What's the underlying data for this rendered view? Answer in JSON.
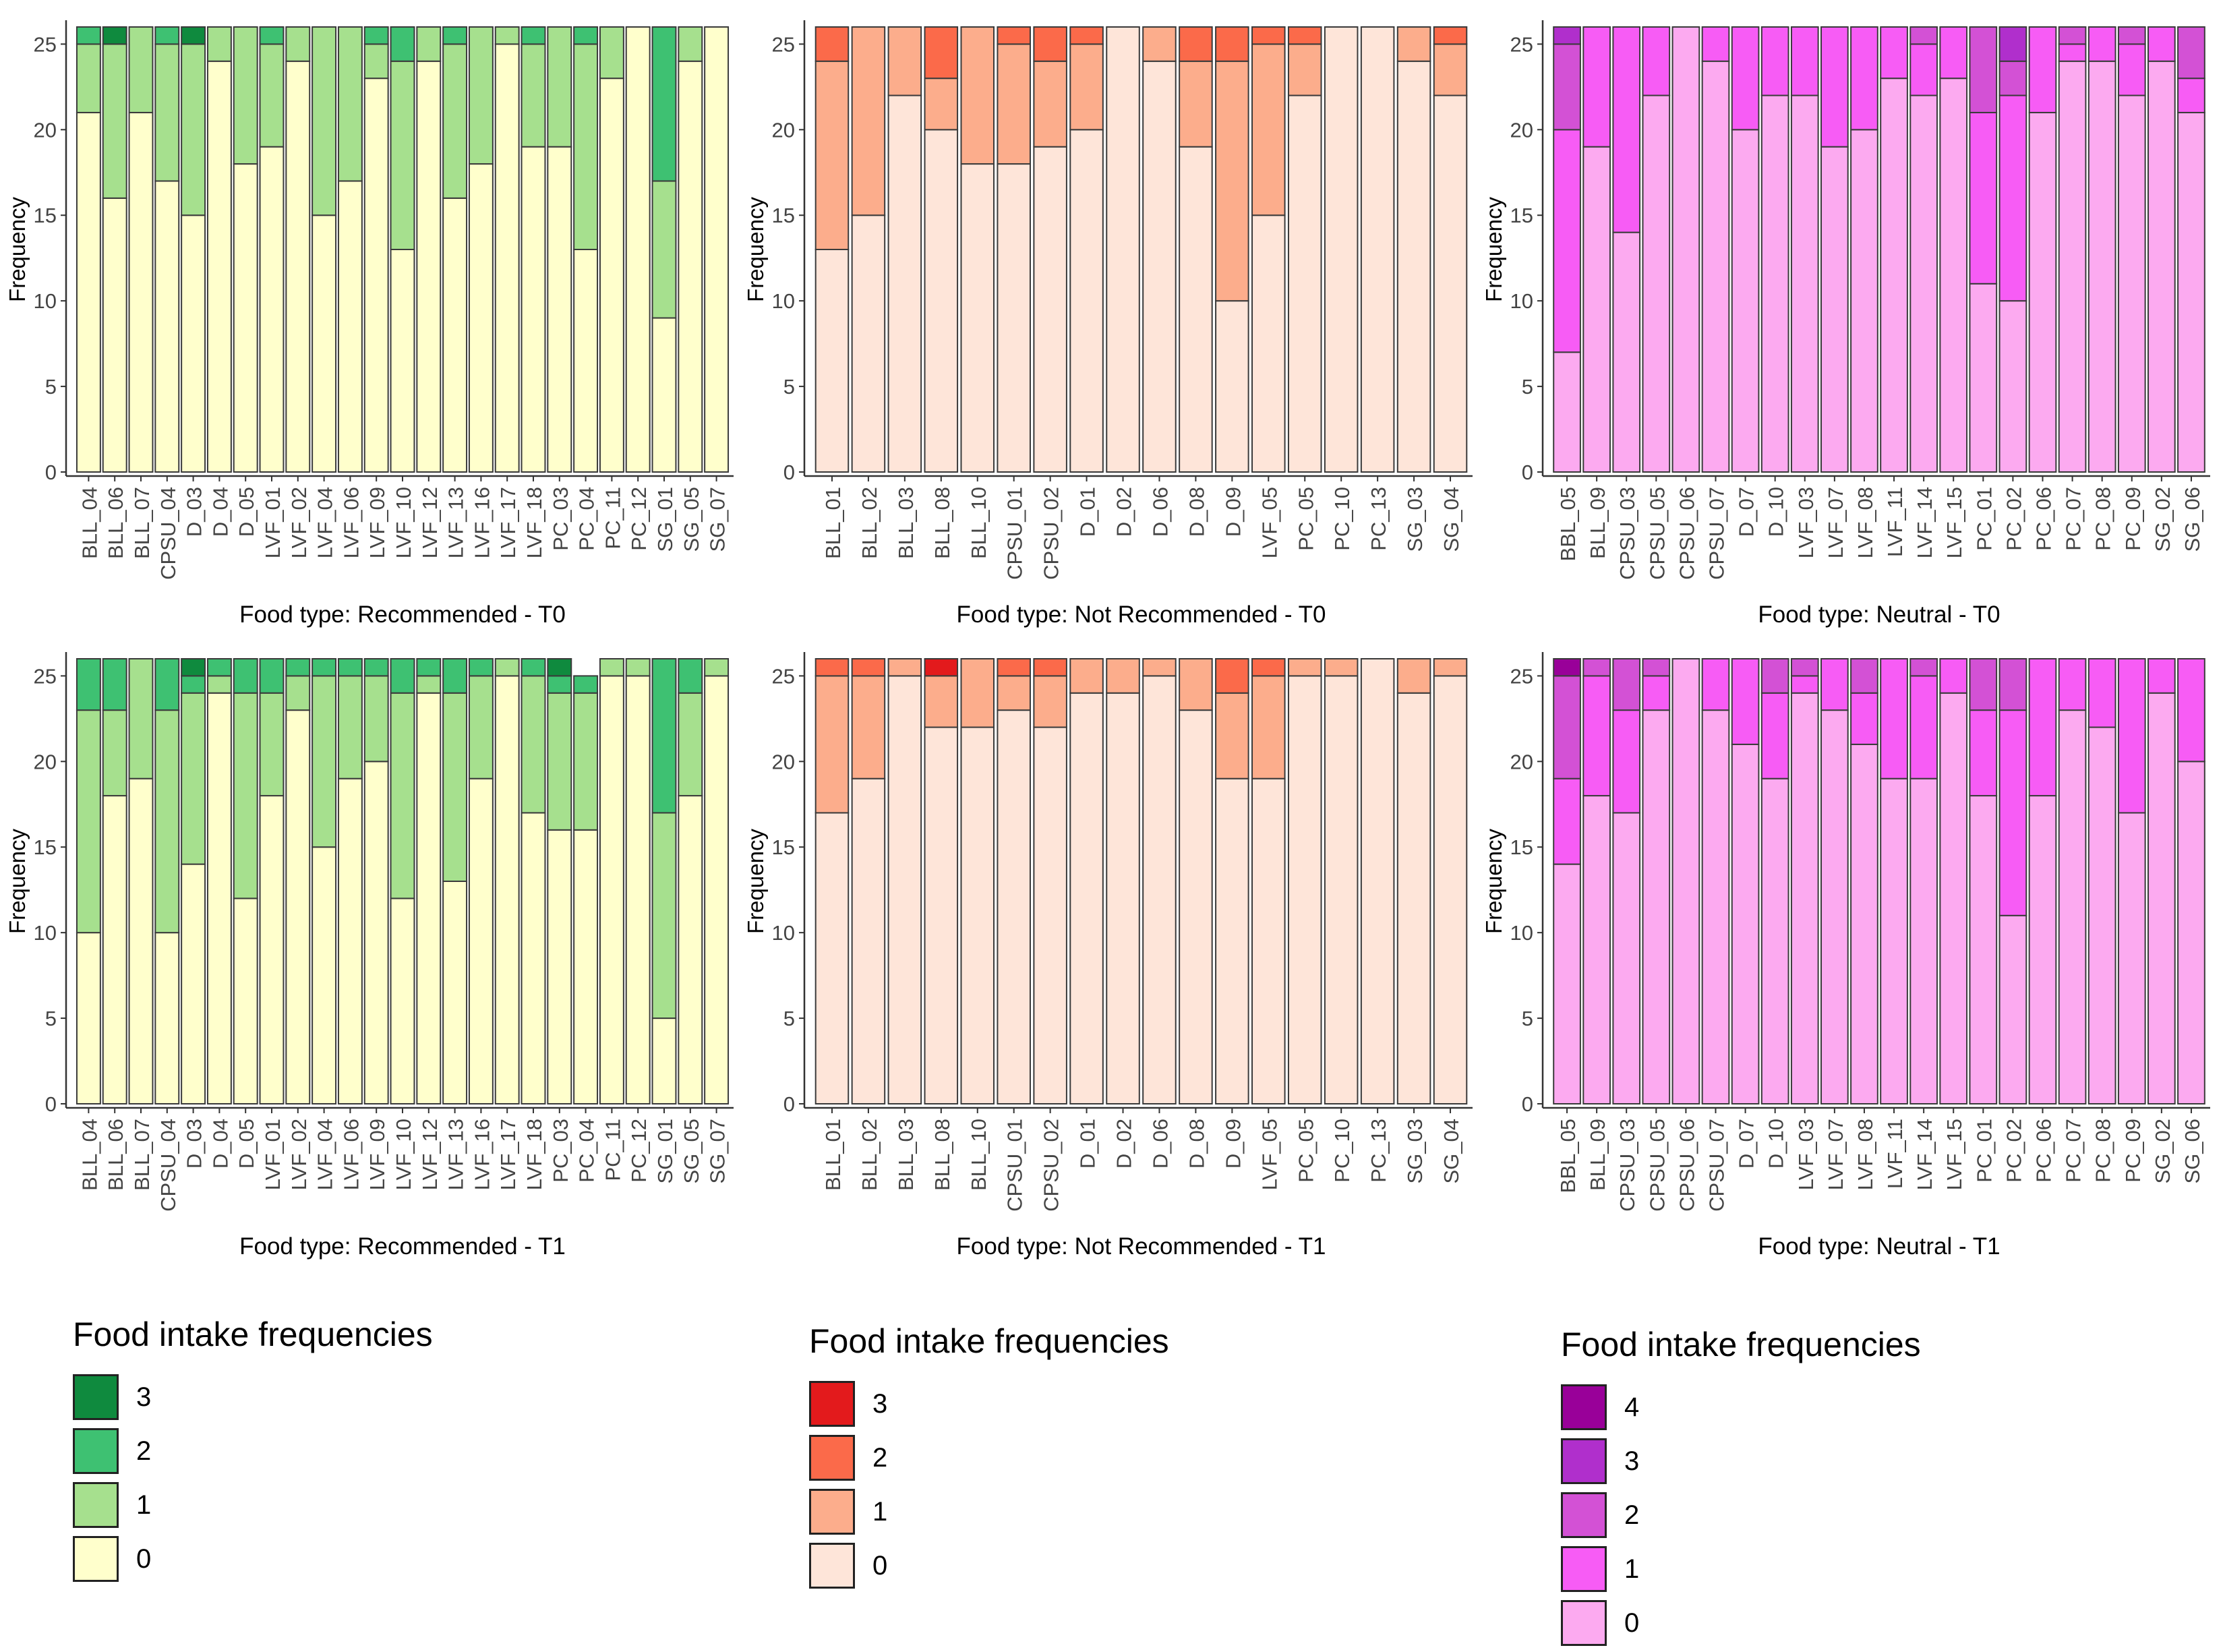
{
  "chart_data": [
    {
      "type": "stacked_bar",
      "panel": "recommended_t0",
      "title": "",
      "xlabel": "Food type: Recommended - T0",
      "ylabel": "Frequency",
      "ylim": [
        0,
        26
      ],
      "yticks": [
        0,
        5,
        10,
        15,
        20,
        25
      ],
      "grid": false,
      "categories": [
        "BLL_04",
        "BLL_06",
        "BLL_07",
        "CPSU_04",
        "D_03",
        "D_04",
        "D_05",
        "LVF_01",
        "LVF_02",
        "LVF_04",
        "LVF_06",
        "LVF_09",
        "LVF_10",
        "LVF_12",
        "LVF_13",
        "LVF_16",
        "LVF_17",
        "LVF_18",
        "PC_03",
        "PC_04",
        "PC_11",
        "PC_12",
        "SG_01",
        "SG_05",
        "SG_07"
      ],
      "series": [
        {
          "name": "0",
          "color": "#ffffcc",
          "values": [
            21,
            16,
            21,
            17,
            15,
            24,
            18,
            19,
            24,
            15,
            17,
            23,
            13,
            24,
            16,
            18,
            25,
            19,
            19,
            13,
            23,
            26,
            9,
            24,
            26
          ]
        },
        {
          "name": "1",
          "color": "#a6e08e",
          "values": [
            4,
            9,
            5,
            8,
            10,
            2,
            8,
            6,
            2,
            11,
            9,
            2,
            11,
            2,
            9,
            8,
            1,
            6,
            7,
            12,
            3,
            0,
            8,
            2,
            0
          ]
        },
        {
          "name": "2",
          "color": "#3ec172",
          "values": [
            1,
            0,
            0,
            1,
            0,
            0,
            0,
            1,
            0,
            0,
            0,
            1,
            2,
            0,
            1,
            0,
            0,
            1,
            0,
            1,
            0,
            0,
            9,
            0,
            0
          ]
        },
        {
          "name": "3",
          "color": "#0f8a3e",
          "values": [
            0,
            1,
            0,
            0,
            1,
            0,
            0,
            0,
            0,
            0,
            0,
            0,
            0,
            0,
            0,
            0,
            0,
            0,
            0,
            0,
            0,
            0,
            0,
            0,
            0
          ]
        }
      ]
    },
    {
      "type": "stacked_bar",
      "panel": "not_recommended_t0",
      "title": "",
      "xlabel": "Food type: Not Recommended - T0",
      "ylabel": "Frequency",
      "ylim": [
        0,
        26
      ],
      "yticks": [
        0,
        5,
        10,
        15,
        20,
        25
      ],
      "grid": false,
      "categories": [
        "BLL_01",
        "BLL_02",
        "BLL_03",
        "BLL_08",
        "BLL_10",
        "CPSU_01",
        "CPSU_02",
        "D_01",
        "D_02",
        "D_06",
        "D_08",
        "D_09",
        "LVF_05",
        "PC_05",
        "PC_10",
        "PC_13",
        "SG_03",
        "SG_04"
      ],
      "series": [
        {
          "name": "0",
          "color": "#fee5d9",
          "values": [
            13,
            15,
            22,
            20,
            18,
            18,
            19,
            20,
            26,
            24,
            19,
            10,
            15,
            22,
            26,
            26,
            24,
            22
          ]
        },
        {
          "name": "1",
          "color": "#fcad8c",
          "values": [
            11,
            11,
            4,
            3,
            8,
            7,
            5,
            5,
            0,
            2,
            5,
            14,
            10,
            3,
            0,
            0,
            2,
            3
          ]
        },
        {
          "name": "2",
          "color": "#fb6a4a",
          "values": [
            2,
            0,
            0,
            3,
            0,
            1,
            2,
            1,
            0,
            0,
            2,
            2,
            1,
            1,
            0,
            0,
            0,
            1
          ]
        },
        {
          "name": "3",
          "color": "#e31a1c",
          "values": [
            0,
            0,
            0,
            0,
            0,
            0,
            0,
            0,
            0,
            0,
            0,
            0,
            0,
            0,
            0,
            0,
            0,
            0
          ]
        }
      ]
    },
    {
      "type": "stacked_bar",
      "panel": "neutral_t0",
      "title": "",
      "xlabel": "Food type: Neutral - T0",
      "ylabel": "Frequency",
      "ylim": [
        0,
        26
      ],
      "yticks": [
        0,
        5,
        10,
        15,
        20,
        25
      ],
      "grid": false,
      "categories": [
        "BBL_05",
        "BLL_09",
        "CPSU_03",
        "CPSU_05",
        "CPSU_06",
        "CPSU_07",
        "D_07",
        "D_10",
        "LVF_03",
        "LVF_07",
        "LVF_08",
        "LVF_11",
        "LVF_14",
        "LVF_15",
        "PC_01",
        "PC_02",
        "PC_06",
        "PC_07",
        "PC_08",
        "PC_09",
        "SG_02",
        "SG_06"
      ],
      "series": [
        {
          "name": "0",
          "color": "#fcaaf0",
          "values": [
            7,
            19,
            14,
            22,
            26,
            24,
            20,
            22,
            22,
            19,
            20,
            23,
            22,
            23,
            11,
            10,
            21,
            24,
            24,
            22,
            24,
            21
          ]
        },
        {
          "name": "1",
          "color": "#f75cf5",
          "values": [
            13,
            7,
            12,
            4,
            0,
            2,
            6,
            4,
            4,
            7,
            6,
            3,
            3,
            3,
            10,
            12,
            5,
            1,
            2,
            3,
            2,
            2
          ]
        },
        {
          "name": "2",
          "color": "#d351d5",
          "values": [
            5,
            0,
            0,
            0,
            0,
            0,
            0,
            0,
            0,
            0,
            0,
            0,
            1,
            0,
            5,
            2,
            0,
            1,
            0,
            1,
            0,
            3
          ]
        },
        {
          "name": "3",
          "color": "#b02fcc",
          "values": [
            1,
            0,
            0,
            0,
            0,
            0,
            0,
            0,
            0,
            0,
            0,
            0,
            0,
            0,
            0,
            2,
            0,
            0,
            0,
            0,
            0,
            0
          ]
        },
        {
          "name": "4",
          "color": "#990099",
          "values": [
            0,
            0,
            0,
            0,
            0,
            0,
            0,
            0,
            0,
            0,
            0,
            0,
            0,
            0,
            0,
            0,
            0,
            0,
            0,
            0,
            0,
            0
          ]
        }
      ]
    },
    {
      "type": "stacked_bar",
      "panel": "recommended_t1",
      "title": "",
      "xlabel": "Food type: Recommended - T1",
      "ylabel": "Frequency",
      "ylim": [
        0,
        26
      ],
      "yticks": [
        0,
        5,
        10,
        15,
        20,
        25
      ],
      "grid": false,
      "categories": [
        "BLL_04",
        "BLL_06",
        "BLL_07",
        "CPSU_04",
        "D_03",
        "D_04",
        "D_05",
        "LVF_01",
        "LVF_02",
        "LVF_04",
        "LVF_06",
        "LVF_09",
        "LVF_10",
        "LVF_12",
        "LVF_13",
        "LVF_16",
        "LVF_17",
        "LVF_18",
        "PC_03",
        "PC_04",
        "PC_11",
        "PC_12",
        "SG_01",
        "SG_05",
        "SG_07"
      ],
      "series": [
        {
          "name": "0",
          "color": "#ffffcc",
          "values": [
            10,
            18,
            19,
            10,
            14,
            24,
            12,
            18,
            23,
            15,
            19,
            20,
            12,
            24,
            13,
            19,
            25,
            17,
            16,
            16,
            25,
            25,
            5,
            18,
            25
          ]
        },
        {
          "name": "1",
          "color": "#a6e08e",
          "values": [
            13,
            5,
            7,
            13,
            10,
            1,
            12,
            6,
            2,
            10,
            6,
            5,
            12,
            1,
            11,
            6,
            1,
            8,
            8,
            8,
            1,
            1,
            12,
            6,
            1
          ]
        },
        {
          "name": "2",
          "color": "#3ec172",
          "values": [
            3,
            3,
            0,
            3,
            1,
            1,
            2,
            2,
            1,
            1,
            1,
            1,
            2,
            1,
            2,
            1,
            0,
            1,
            1,
            1,
            0,
            0,
            9,
            2,
            0
          ]
        },
        {
          "name": "3",
          "color": "#0f8a3e",
          "values": [
            0,
            0,
            0,
            0,
            1,
            0,
            0,
            0,
            0,
            0,
            0,
            0,
            0,
            0,
            0,
            0,
            0,
            0,
            1,
            0,
            0,
            0,
            0,
            0,
            0
          ]
        }
      ]
    },
    {
      "type": "stacked_bar",
      "panel": "not_recommended_t1",
      "title": "",
      "xlabel": "Food type: Not Recommended - T1",
      "ylabel": "Frequency",
      "ylim": [
        0,
        26
      ],
      "yticks": [
        0,
        5,
        10,
        15,
        20,
        25
      ],
      "grid": false,
      "categories": [
        "BLL_01",
        "BLL_02",
        "BLL_03",
        "BLL_08",
        "BLL_10",
        "CPSU_01",
        "CPSU_02",
        "D_01",
        "D_02",
        "D_06",
        "D_08",
        "D_09",
        "LVF_05",
        "PC_05",
        "PC_10",
        "PC_13",
        "SG_03",
        "SG_04"
      ],
      "series": [
        {
          "name": "0",
          "color": "#fee5d9",
          "values": [
            17,
            19,
            25,
            22,
            22,
            23,
            22,
            24,
            24,
            25,
            23,
            19,
            19,
            25,
            25,
            26,
            24,
            25
          ]
        },
        {
          "name": "1",
          "color": "#fcad8c",
          "values": [
            8,
            6,
            1,
            3,
            4,
            2,
            3,
            2,
            2,
            1,
            3,
            5,
            6,
            1,
            1,
            0,
            2,
            1
          ]
        },
        {
          "name": "2",
          "color": "#fb6a4a",
          "values": [
            1,
            1,
            0,
            0,
            0,
            1,
            1,
            0,
            0,
            0,
            0,
            2,
            1,
            0,
            0,
            0,
            0,
            0
          ]
        },
        {
          "name": "3",
          "color": "#e31a1c",
          "values": [
            0,
            0,
            0,
            1,
            0,
            0,
            0,
            0,
            0,
            0,
            0,
            0,
            0,
            0,
            0,
            0,
            0,
            0
          ]
        }
      ]
    },
    {
      "type": "stacked_bar",
      "panel": "neutral_t1",
      "title": "",
      "xlabel": "Food type: Neutral - T1",
      "ylabel": "Frequency",
      "ylim": [
        0,
        26
      ],
      "yticks": [
        0,
        5,
        10,
        15,
        20,
        25
      ],
      "grid": false,
      "categories": [
        "BBL_05",
        "BLL_09",
        "CPSU_03",
        "CPSU_05",
        "CPSU_06",
        "CPSU_07",
        "D_07",
        "D_10",
        "LVF_03",
        "LVF_07",
        "LVF_08",
        "LVF_11",
        "LVF_14",
        "LVF_15",
        "PC_01",
        "PC_02",
        "PC_06",
        "PC_07",
        "PC_08",
        "PC_09",
        "SG_02",
        "SG_06"
      ],
      "series": [
        {
          "name": "0",
          "color": "#fcaaf0",
          "values": [
            14,
            18,
            17,
            23,
            26,
            23,
            21,
            19,
            24,
            23,
            21,
            19,
            19,
            24,
            18,
            11,
            18,
            23,
            22,
            17,
            24,
            20
          ]
        },
        {
          "name": "1",
          "color": "#f75cf5",
          "values": [
            5,
            7,
            6,
            2,
            0,
            3,
            5,
            5,
            1,
            3,
            3,
            7,
            6,
            2,
            5,
            12,
            8,
            3,
            4,
            9,
            2,
            6
          ]
        },
        {
          "name": "2",
          "color": "#d351d5",
          "values": [
            6,
            1,
            3,
            1,
            0,
            0,
            0,
            2,
            1,
            0,
            2,
            0,
            1,
            0,
            3,
            3,
            0,
            0,
            0,
            0,
            0,
            0
          ]
        },
        {
          "name": "3",
          "color": "#b02fcc",
          "values": [
            0,
            0,
            0,
            0,
            0,
            0,
            0,
            0,
            0,
            0,
            0,
            0,
            0,
            0,
            0,
            0,
            0,
            0,
            0,
            0,
            0,
            0
          ]
        },
        {
          "name": "4",
          "color": "#990099",
          "values": [
            1,
            0,
            0,
            0,
            0,
            0,
            0,
            0,
            0,
            0,
            0,
            0,
            0,
            0,
            0,
            0,
            0,
            0,
            0,
            0,
            0,
            0
          ]
        }
      ]
    }
  ],
  "legends": [
    {
      "title": "Food intake frequencies",
      "items": [
        {
          "label": "3",
          "color": "#0f8a3e"
        },
        {
          "label": "2",
          "color": "#3ec172"
        },
        {
          "label": "1",
          "color": "#a6e08e"
        },
        {
          "label": "0",
          "color": "#ffffcc"
        }
      ]
    },
    {
      "title": "Food intake frequencies",
      "items": [
        {
          "label": "3",
          "color": "#e31a1c"
        },
        {
          "label": "2",
          "color": "#fb6a4a"
        },
        {
          "label": "1",
          "color": "#fcad8c"
        },
        {
          "label": "0",
          "color": "#fee5d9"
        }
      ]
    },
    {
      "title": "Food intake frequencies",
      "items": [
        {
          "label": "4",
          "color": "#990099"
        },
        {
          "label": "3",
          "color": "#b02fcc"
        },
        {
          "label": "2",
          "color": "#d351d5"
        },
        {
          "label": "1",
          "color": "#f75cf5"
        },
        {
          "label": "0",
          "color": "#fcaaf0"
        }
      ]
    }
  ]
}
